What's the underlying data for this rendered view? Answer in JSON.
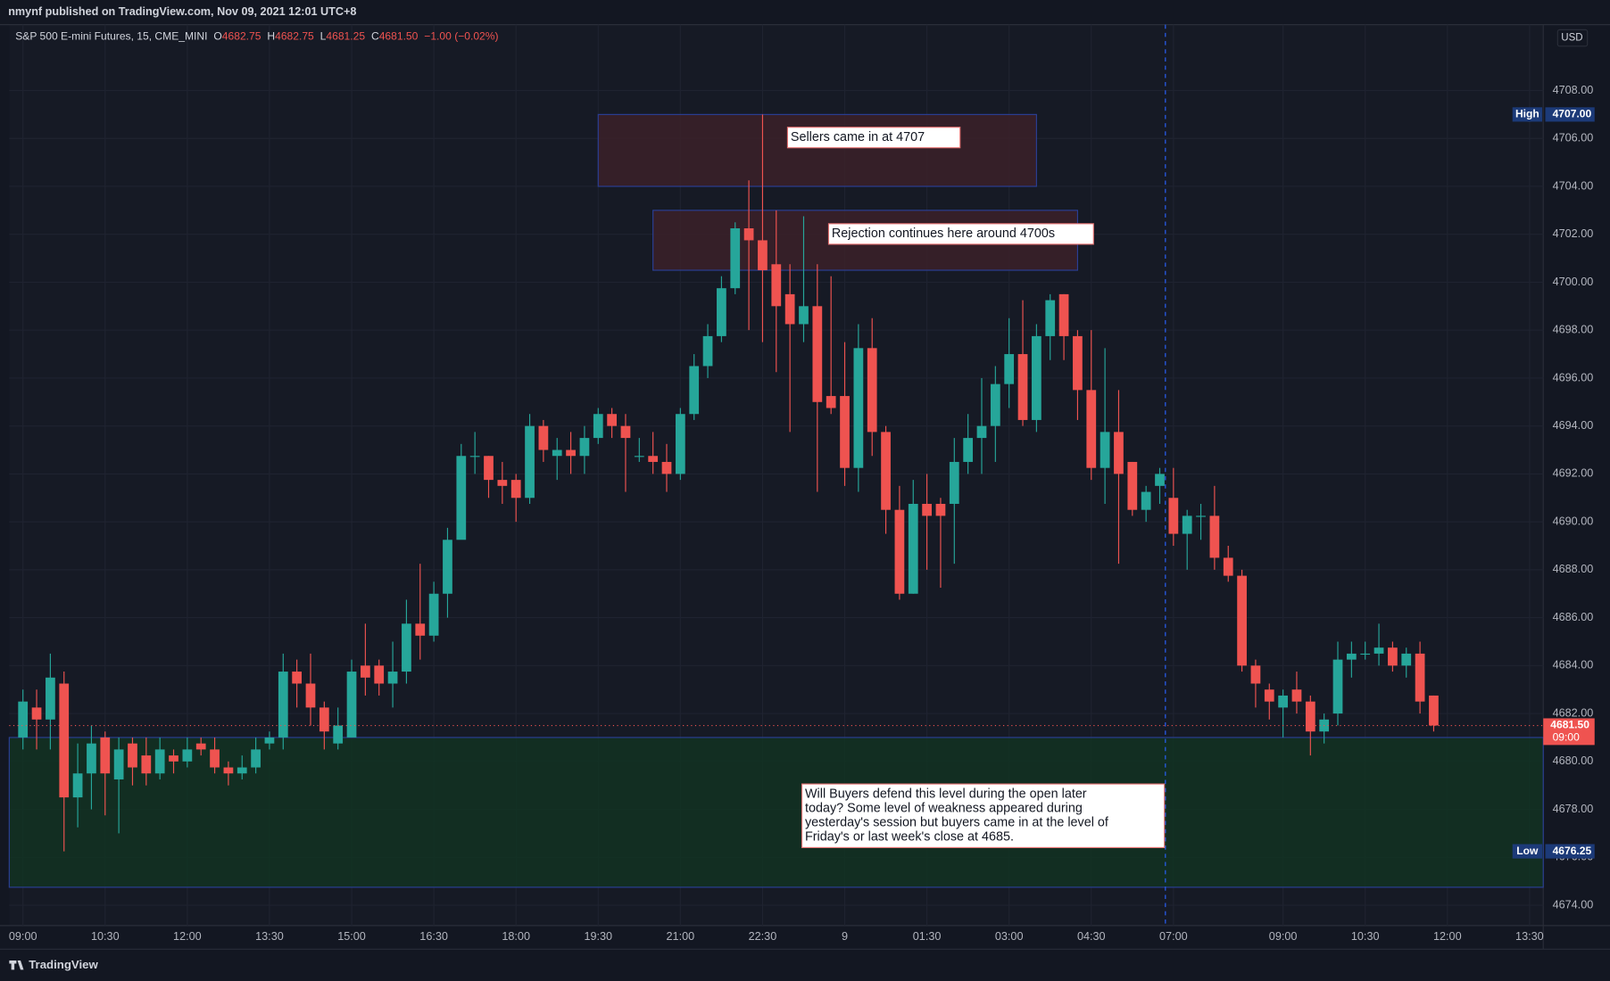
{
  "header": "nmynf published on TradingView.com, Nov 09, 2021 12:01 UTC+8",
  "footer": "TradingView",
  "chart_data": {
    "type": "candlestick",
    "legend": {
      "symbol": "S&P 500 E-mini Futures, 15, CME_MINI",
      "fields": [
        {
          "key": "O",
          "value": 4682.75
        },
        {
          "key": "H",
          "value": 4682.75
        },
        {
          "key": "L",
          "value": 4681.25
        },
        {
          "key": "C",
          "value": 4681.5,
          "label": "4681.50"
        }
      ],
      "change": "−1.00 (−0.02%)",
      "color": "#ef5350"
    },
    "currency": "USD",
    "up_color": "#26a69a",
    "down_color": "#ef5350",
    "open": [
      4681.0,
      4682.25,
      4681.75,
      4683.25,
      4678.5,
      4679.5,
      4681.0,
      4679.25,
      4680.75,
      4680.25,
      4679.5,
      4680.25,
      4680.0,
      4680.75,
      4680.5,
      4679.75,
      4679.5,
      4679.75,
      4680.75,
      4681.0,
      4683.75,
      4683.25,
      4682.25,
      4680.75,
      4681.0,
      4684.0,
      4684.0,
      4683.25,
      4683.75,
      4685.75,
      4685.25,
      4687.0,
      4689.25,
      4692.75,
      4692.75,
      4691.75,
      4691.75,
      4691.0,
      4694.0,
      4692.75,
      4693.0,
      4692.75,
      4693.5,
      4694.5,
      4694.0,
      4692.75,
      4692.75,
      4692.5,
      4692.0,
      4694.5,
      4696.5,
      4697.75,
      4699.75,
      4702.25,
      4701.75,
      4700.75,
      4699.5,
      4698.25,
      4699.0,
      4695.25,
      4695.25,
      4692.25,
      4697.25,
      4693.75,
      4690.5,
      4687.0,
      4690.75,
      4690.75,
      4690.75,
      4692.5,
      4693.5,
      4694.0,
      4695.75,
      4697.0,
      4694.25,
      4697.75,
      4699.5,
      4697.75,
      4695.5,
      4692.25,
      4693.75,
      4692.5,
      4690.5,
      4691.5,
      4691.0,
      4689.5,
      4690.25,
      4690.25,
      4688.5,
      4687.75,
      4684.0,
      4683.0,
      4682.25,
      4683.0,
      4682.5,
      4681.25,
      4682.0,
      4684.25,
      4684.5,
      4684.5,
      4684.75,
      4684.0,
      4684.5,
      4682.75
    ],
    "high": [
      4683.0,
      4683.0,
      4684.5,
      4683.75,
      4680.75,
      4681.5,
      4681.25,
      4681.0,
      4681.0,
      4681.0,
      4681.0,
      4680.5,
      4681.0,
      4681.0,
      4681.0,
      4680.0,
      4680.25,
      4681.0,
      4681.25,
      4684.5,
      4684.25,
      4684.5,
      4682.5,
      4682.25,
      4684.25,
      4685.75,
      4684.25,
      4685.0,
      4686.75,
      4688.25,
      4687.5,
      4689.75,
      4693.25,
      4693.75,
      4692.75,
      4692.5,
      4692.0,
      4694.5,
      4694.25,
      4693.5,
      4693.75,
      4694.0,
      4694.75,
      4694.75,
      4694.5,
      4693.5,
      4693.75,
      4693.25,
      4694.75,
      4697.0,
      4698.25,
      4700.25,
      4702.5,
      4704.25,
      4707.0,
      4703.0,
      4700.75,
      4702.75,
      4700.75,
      4700.25,
      4697.5,
      4698.25,
      4698.5,
      4694.0,
      4691.5,
      4691.75,
      4692.0,
      4691.0,
      4693.5,
      4694.5,
      4696.0,
      4696.5,
      4698.5,
      4699.25,
      4698.25,
      4699.5,
      4699.5,
      4698.0,
      4698.0,
      4697.25,
      4695.5,
      4692.5,
      4691.5,
      4692.25,
      4692.25,
      4690.5,
      4690.75,
      4691.5,
      4689.0,
      4688.0,
      4684.25,
      4683.25,
      4683.0,
      4683.75,
      4682.75,
      4682.0,
      4685.0,
      4685.0,
      4685.0,
      4685.75,
      4685.0,
      4684.75,
      4685.0,
      4682.75
    ],
    "low": [
      4680.5,
      4680.5,
      4680.5,
      4676.25,
      4677.25,
      4678.0,
      4677.75,
      4677.0,
      4679.0,
      4679.0,
      4679.25,
      4679.5,
      4679.75,
      4680.25,
      4679.5,
      4679.0,
      4679.25,
      4679.5,
      4680.5,
      4680.5,
      4682.25,
      4681.5,
      4680.5,
      4680.5,
      4681.0,
      4682.75,
      4682.75,
      4682.25,
      4683.25,
      4684.25,
      4685.0,
      4686.0,
      4689.5,
      4692.0,
      4691.0,
      4690.75,
      4690.0,
      4690.75,
      4692.5,
      4691.75,
      4692.0,
      4692.0,
      4693.25,
      4693.5,
      4691.25,
      4692.5,
      4692.0,
      4691.25,
      4691.75,
      4694.25,
      4696.0,
      4697.5,
      4699.5,
      4698.0,
      4697.5,
      4696.25,
      4693.75,
      4697.5,
      4691.25,
      4694.5,
      4691.5,
      4691.25,
      4692.75,
      4689.5,
      4686.75,
      4687.0,
      4688.0,
      4687.25,
      4688.25,
      4692.0,
      4692.0,
      4692.5,
      4694.75,
      4694.0,
      4693.75,
      4696.75,
      4696.75,
      4694.25,
      4691.75,
      4690.75,
      4688.25,
      4690.25,
      4690.0,
      4690.75,
      4689.0,
      4688.0,
      4689.25,
      4688.0,
      4687.5,
      4683.75,
      4682.25,
      4681.75,
      4681.0,
      4682.0,
      4680.25,
      4680.75,
      4681.5,
      4683.5,
      4684.25,
      4684.0,
      4683.75,
      4683.5,
      4682.0,
      4681.25
    ],
    "close": [
      4682.5,
      4681.75,
      4683.5,
      4678.5,
      4679.5,
      4680.75,
      4679.5,
      4680.5,
      4679.75,
      4679.5,
      4680.5,
      4680.0,
      4680.5,
      4680.5,
      4679.75,
      4679.5,
      4679.75,
      4680.5,
      4681.0,
      4683.75,
      4683.25,
      4682.25,
      4681.25,
      4681.5,
      4683.75,
      4683.5,
      4683.25,
      4683.75,
      4685.75,
      4685.25,
      4687.0,
      4689.25,
      4692.75,
      4692.75,
      4691.75,
      4691.5,
      4691.0,
      4694.0,
      4693.0,
      4693.0,
      4692.75,
      4693.5,
      4694.5,
      4694.0,
      4693.5,
      4692.75,
      4692.5,
      4692.0,
      4694.5,
      4696.5,
      4697.75,
      4699.75,
      4702.25,
      4701.75,
      4700.5,
      4699.0,
      4698.25,
      4699.0,
      4695.0,
      4694.75,
      4692.25,
      4697.25,
      4693.75,
      4690.5,
      4687.0,
      4690.75,
      4690.25,
      4690.25,
      4692.5,
      4693.5,
      4694.0,
      4695.75,
      4697.0,
      4694.25,
      4697.75,
      4699.25,
      4697.75,
      4695.5,
      4692.25,
      4693.75,
      4692.0,
      4690.5,
      4691.25,
      4692.0,
      4689.5,
      4690.25,
      4690.25,
      4688.5,
      4687.75,
      4684.0,
      4683.25,
      4682.5,
      4682.75,
      4682.5,
      4681.25,
      4681.75,
      4684.25,
      4684.5,
      4684.5,
      4684.75,
      4684.0,
      4684.5,
      4682.5,
      4681.5
    ],
    "xlim": [
      -1,
      111
    ],
    "xticks": [
      {
        "value": 0,
        "label": "09:00"
      },
      {
        "value": 6,
        "label": "10:30"
      },
      {
        "value": 12,
        "label": "12:00"
      },
      {
        "value": 18,
        "label": "13:30"
      },
      {
        "value": 24,
        "label": "15:00"
      },
      {
        "value": 30,
        "label": "16:30"
      },
      {
        "value": 36,
        "label": "18:00"
      },
      {
        "value": 42,
        "label": "19:30"
      },
      {
        "value": 48,
        "label": "21:00"
      },
      {
        "value": 54,
        "label": "22:30"
      },
      {
        "value": 60,
        "label": "9"
      },
      {
        "value": 66,
        "label": "01:30"
      },
      {
        "value": 72,
        "label": "03:00"
      },
      {
        "value": 78,
        "label": "04:30"
      },
      {
        "value": 84,
        "label": "07:00"
      },
      {
        "value": 92,
        "label": "09:00"
      },
      {
        "value": 98,
        "label": "10:30"
      },
      {
        "value": 104,
        "label": "12:00"
      },
      {
        "value": 110,
        "label": "13:30"
      }
    ],
    "ylim": [
      4673.15,
      4710.75
    ],
    "yticks": [
      {
        "value": 4674,
        "label": "4674.00"
      },
      {
        "value": 4676,
        "label": "4676.00"
      },
      {
        "value": 4678,
        "label": "4678.00"
      },
      {
        "value": 4680,
        "label": "4680.00"
      },
      {
        "value": 4682,
        "label": "4682.00"
      },
      {
        "value": 4684,
        "label": "4684.00"
      },
      {
        "value": 4686,
        "label": "4686.00"
      },
      {
        "value": 4688,
        "label": "4688.00"
      },
      {
        "value": 4690,
        "label": "4690.00"
      },
      {
        "value": 4692,
        "label": "4692.00"
      },
      {
        "value": 4694,
        "label": "4694.00"
      },
      {
        "value": 4696,
        "label": "4696.00"
      },
      {
        "value": 4698,
        "label": "4698.00"
      },
      {
        "value": 4700,
        "label": "4700.00"
      },
      {
        "value": 4702,
        "label": "4702.00"
      },
      {
        "value": 4704,
        "label": "4704.00"
      },
      {
        "value": 4706,
        "label": "4706.00"
      },
      {
        "value": 4708,
        "label": "4708.00"
      }
    ],
    "grid": true,
    "zones": [
      {
        "top": 4707,
        "bottom": 4704,
        "start": 42,
        "end": 74,
        "color": "#3b2129"
      },
      {
        "top": 4703,
        "bottom": 4700.5,
        "start": 46,
        "end": 77,
        "color": "#3b2129"
      },
      {
        "top": 4681,
        "bottom": 4674.75,
        "start": -1,
        "end": 111,
        "color": "#123322"
      }
    ],
    "annotations": [
      {
        "lines": [
          "Sellers came in at 4707"
        ]
      },
      {
        "lines": [
          "Rejection continues here around 4700s"
        ]
      },
      {
        "lines": [
          "Will Buyers defend this level during the open later",
          "today? Some level of weakness appeared during",
          "yesterday's session but buyers came in at the level of",
          "Friday's or last week's close at 4685."
        ]
      }
    ],
    "price_tags": [
      {
        "name": "High",
        "value": 4707,
        "label": "4707.00",
        "color": "#1c3a78"
      },
      {
        "name": "Low",
        "value": 4676.25,
        "color": "#1c3a78"
      }
    ],
    "last_price": {
      "value": 4681.5,
      "label": "4681.50",
      "countdown": "09:00",
      "color": "#ef5350"
    }
  }
}
